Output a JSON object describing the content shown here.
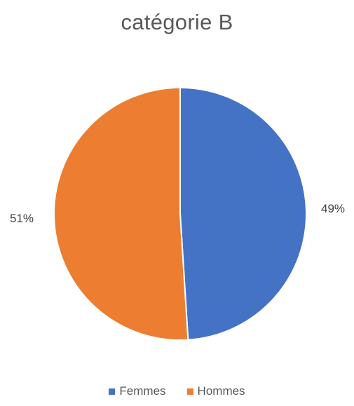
{
  "chart_data": {
    "type": "pie",
    "title": "catégorie B",
    "series": [
      {
        "categories": [
          "Femmes",
          "Hommes"
        ],
        "values": [
          49,
          51
        ],
        "labels": [
          "49%",
          "51%"
        ],
        "colors": [
          "#4472C4",
          "#ED7D31"
        ]
      }
    ],
    "legend": {
      "position": "bottom",
      "entries": [
        "Femmes",
        "Hommes"
      ]
    },
    "start_angle_deg": 0,
    "direction": "clockwise"
  }
}
